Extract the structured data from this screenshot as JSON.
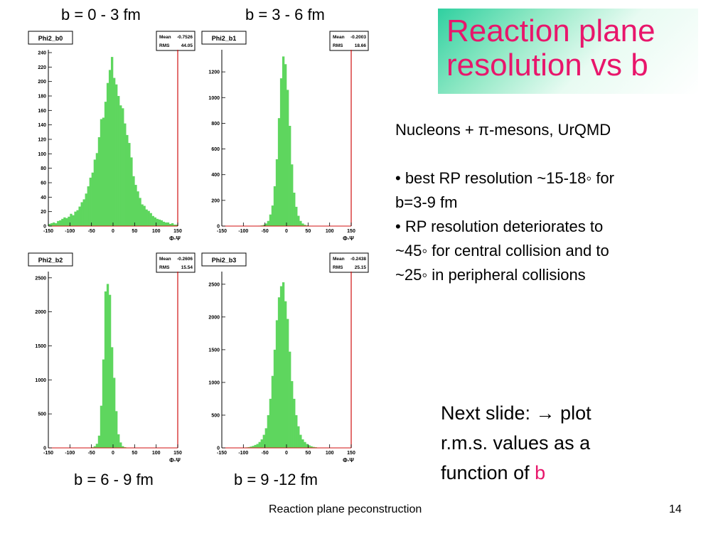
{
  "slide": {
    "title_line1": "Reaction plane",
    "title_line2": "resolution vs b",
    "bullets": {
      "header": "Nucleons + π-mesons,  UrQMD",
      "b1_line1": "• best RP resolution ~15-18◦ for",
      "b1_line2": "b=3-9 fm",
      "b2_line1": "• RP resolution deteriorates to",
      "b2_line2": "~45◦ for central collision and to",
      "b2_line3": "~25◦ in peripheral collisions"
    },
    "next_slide": {
      "line1": "Next slide: → plot",
      "line2": "r.m.s. values as a",
      "line3_prefix": "function of ",
      "line3_highlight": "b"
    },
    "footer_text": "Reaction plane peconstruction",
    "page_number": "14",
    "labels": {
      "b0": "b = 0 - 3 fm",
      "b1": "b = 3 - 6 fm",
      "b2": "b = 6 - 9 fm",
      "b3": "b = 9 -12 fm"
    },
    "colors": {
      "title": "#e8166b",
      "bars": "#5ed65e",
      "frame": "#d01010"
    }
  },
  "chart_data": [
    {
      "type": "bar",
      "name": "Phi2_b0",
      "stats": {
        "mean_label": "Mean",
        "mean": "-0.7526",
        "rms_label": "RMS",
        "rms": "44.05"
      },
      "xlabel": "Φ-Ψ",
      "xlim": [
        -150,
        150
      ],
      "ylim": [
        0,
        240
      ],
      "xticks": [
        "-150",
        "-100",
        "-50",
        "0",
        "50",
        "100",
        "150"
      ],
      "yticks": [
        "0",
        "20",
        "40",
        "60",
        "80",
        "100",
        "120",
        "140",
        "160",
        "180",
        "200",
        "220",
        "240"
      ],
      "bin_width": 5,
      "values": [
        3,
        4,
        5,
        4,
        7,
        8,
        10,
        12,
        11,
        13,
        17,
        15,
        20,
        22,
        27,
        33,
        37,
        45,
        55,
        67,
        74,
        92,
        101,
        123,
        148,
        150,
        172,
        198,
        216,
        234,
        205,
        196,
        180,
        167,
        163,
        142,
        126,
        115,
        95,
        69,
        57,
        48,
        39,
        30,
        28,
        23,
        21,
        18,
        14,
        12,
        10,
        9,
        8,
        6,
        5,
        5,
        3,
        4,
        2,
        2
      ]
    },
    {
      "type": "bar",
      "name": "Phi2_b1",
      "stats": {
        "mean_label": "Mean",
        "mean": "-0.2003",
        "rms_label": "RMS",
        "rms": "18.66"
      },
      "xlabel": "Φ-Ψ",
      "xlim": [
        -150,
        150
      ],
      "ylim": [
        0,
        1350
      ],
      "xticks": [
        "-150",
        "-100",
        "-50",
        "0",
        "50",
        "100",
        "150"
      ],
      "yticks": [
        "0",
        "200",
        "400",
        "600",
        "800",
        "1000",
        "1200"
      ],
      "bin_width": 5,
      "values": [
        0,
        0,
        0,
        0,
        0,
        0,
        0,
        0,
        0,
        0,
        0,
        0,
        0,
        0,
        0,
        0,
        2,
        3,
        5,
        10,
        20,
        40,
        90,
        160,
        310,
        520,
        840,
        1150,
        1320,
        1260,
        1060,
        780,
        480,
        260,
        150,
        80,
        40,
        20,
        10,
        5,
        3,
        2,
        0,
        0,
        0,
        0,
        0,
        0,
        0,
        0,
        0,
        0,
        0,
        0,
        0,
        0,
        0,
        0,
        0,
        0
      ]
    },
    {
      "type": "bar",
      "name": "Phi2_b2",
      "stats": {
        "mean_label": "Mean",
        "mean": "-0.2606",
        "rms_label": "RMS",
        "rms": "15.54"
      },
      "xlabel": "Φ-Ψ",
      "xlim": [
        -150,
        150
      ],
      "ylim": [
        0,
        2550
      ],
      "xticks": [
        "-150",
        "-100",
        "-50",
        "0",
        "50",
        "100",
        "150"
      ],
      "yticks": [
        "0",
        "500",
        "1000",
        "1500",
        "2000",
        "2500"
      ],
      "bin_width": 5,
      "values": [
        0,
        0,
        0,
        0,
        0,
        0,
        0,
        0,
        0,
        0,
        0,
        0,
        0,
        0,
        0,
        0,
        0,
        0,
        0,
        5,
        10,
        25,
        60,
        180,
        620,
        1300,
        2300,
        2410,
        2250,
        1480,
        1030,
        540,
        200,
        80,
        25,
        10,
        5,
        0,
        0,
        0,
        0,
        0,
        0,
        0,
        0,
        0,
        0,
        0,
        0,
        0,
        0,
        0,
        0,
        0,
        0,
        0,
        0,
        0,
        0,
        0
      ]
    },
    {
      "type": "bar",
      "name": "Phi2_b3",
      "stats": {
        "mean_label": "Mean",
        "mean": "-0.2438",
        "rms_label": "RMS",
        "rms": "25.15"
      },
      "xlabel": "Φ-Ψ",
      "xlim": [
        -150,
        150
      ],
      "ylim": [
        0,
        2650
      ],
      "xticks": [
        "-150",
        "-100",
        "-50",
        "0",
        "50",
        "100",
        "150"
      ],
      "yticks": [
        "0",
        "500",
        "1000",
        "1500",
        "2000",
        "2500"
      ],
      "bin_width": 5,
      "values": [
        0,
        0,
        0,
        0,
        0,
        0,
        0,
        0,
        2,
        3,
        5,
        8,
        12,
        20,
        30,
        45,
        60,
        90,
        130,
        200,
        300,
        500,
        750,
        1100,
        1500,
        1950,
        2300,
        2470,
        2530,
        2240,
        1970,
        1470,
        1020,
        750,
        500,
        330,
        200,
        130,
        90,
        60,
        40,
        25,
        15,
        10,
        5,
        3,
        2,
        0,
        0,
        0,
        0,
        0,
        0,
        0,
        0,
        0,
        0,
        0,
        0,
        0
      ]
    }
  ]
}
